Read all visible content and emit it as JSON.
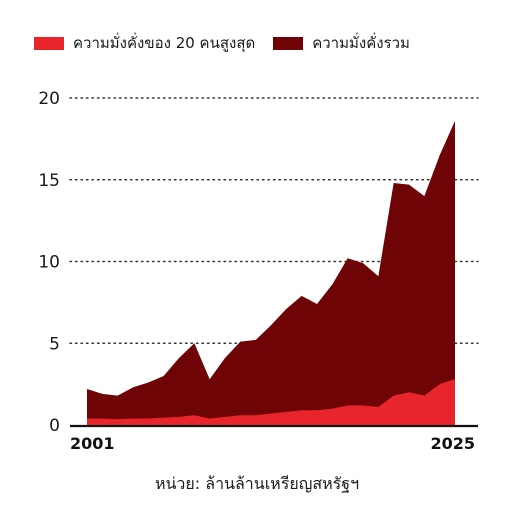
{
  "chart_data": {
    "type": "area",
    "stacked": true,
    "legend_position": "top-left",
    "grid": "dotted horizontal",
    "x": [
      2001,
      2002,
      2003,
      2004,
      2005,
      2006,
      2007,
      2008,
      2009,
      2010,
      2011,
      2012,
      2013,
      2014,
      2015,
      2016,
      2017,
      2018,
      2019,
      2020,
      2021,
      2022,
      2023,
      2024,
      2025
    ],
    "x_tick_labels": [
      "2001",
      "2025"
    ],
    "y_ticks": [
      "0",
      "5",
      "10",
      "15",
      "20"
    ],
    "ylim": [
      0,
      20
    ],
    "series": [
      {
        "name": "ความมั่งคั่งของ 20 คนสูงสุด",
        "color": "#e8252b",
        "values": [
          0.4,
          0.4,
          0.35,
          0.4,
          0.4,
          0.45,
          0.5,
          0.6,
          0.4,
          0.5,
          0.6,
          0.6,
          0.7,
          0.8,
          0.9,
          0.9,
          1.0,
          1.2,
          1.2,
          1.1,
          1.8,
          2.0,
          1.8,
          2.5,
          2.8
        ]
      },
      {
        "name": "ความมั่งคั่งรวม",
        "color": "#6e0406",
        "values": [
          2.2,
          1.9,
          1.8,
          2.3,
          2.6,
          3.0,
          4.1,
          5.0,
          2.8,
          4.1,
          5.1,
          5.2,
          6.1,
          7.1,
          7.9,
          7.4,
          8.6,
          10.2,
          9.9,
          9.1,
          14.8,
          14.7,
          14.0,
          16.5,
          18.6
        ]
      }
    ],
    "note": "หน่วย: ล้านล้านเหรียญสหรัฐฯ"
  }
}
